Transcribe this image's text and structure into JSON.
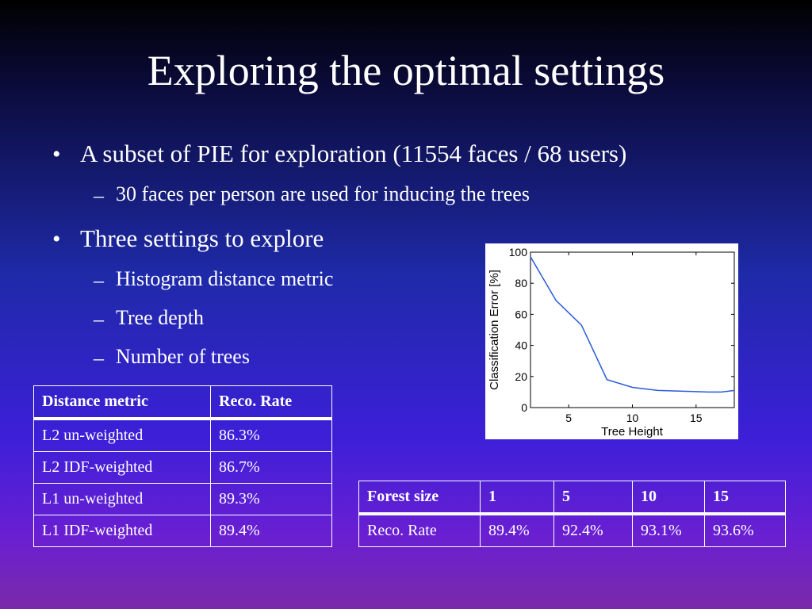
{
  "slide": {
    "title": "Exploring the optimal settings",
    "bullets": [
      {
        "level": 1,
        "text": "A subset of PIE for exploration (11554 faces / 68 users)"
      },
      {
        "level": 2,
        "text": "30 faces per person are used for inducing the trees"
      },
      {
        "level": 1,
        "text": "Three settings to explore"
      },
      {
        "level": 2,
        "text": "Histogram distance metric"
      },
      {
        "level": 2,
        "text": "Tree depth"
      },
      {
        "level": 2,
        "text": "Number of trees"
      }
    ],
    "bullet_glyph": "•",
    "dash_glyph": "–"
  },
  "distance_table": {
    "headers": [
      "Distance metric",
      "Reco. Rate"
    ],
    "rows": [
      [
        "L2 un-weighted",
        "86.3%"
      ],
      [
        "L2 IDF-weighted",
        "86.7%"
      ],
      [
        "L1 un-weighted",
        "89.3%"
      ],
      [
        "L1 IDF-weighted",
        "89.4%"
      ]
    ]
  },
  "forest_table": {
    "headers": [
      "Forest size",
      "1",
      "5",
      "10",
      "15"
    ],
    "row": [
      "Reco. Rate",
      "89.4%",
      "92.4%",
      "93.1%",
      "93.6%"
    ]
  },
  "chart_data": {
    "type": "line",
    "xlabel": "Tree Height",
    "ylabel": "Classification Error [%]",
    "xlim": [
      2,
      18
    ],
    "ylim": [
      0,
      100
    ],
    "xticks": [
      5,
      10,
      15
    ],
    "yticks": [
      0,
      20,
      40,
      60,
      80,
      100
    ],
    "grid": false,
    "series": [
      {
        "x": [
          2,
          4,
          6,
          8,
          10,
          12,
          14,
          16,
          17,
          18
        ],
        "y": [
          97,
          69,
          53,
          18,
          13,
          11,
          10.5,
          10,
          10,
          11
        ],
        "color": "#2a5bd7"
      }
    ]
  }
}
